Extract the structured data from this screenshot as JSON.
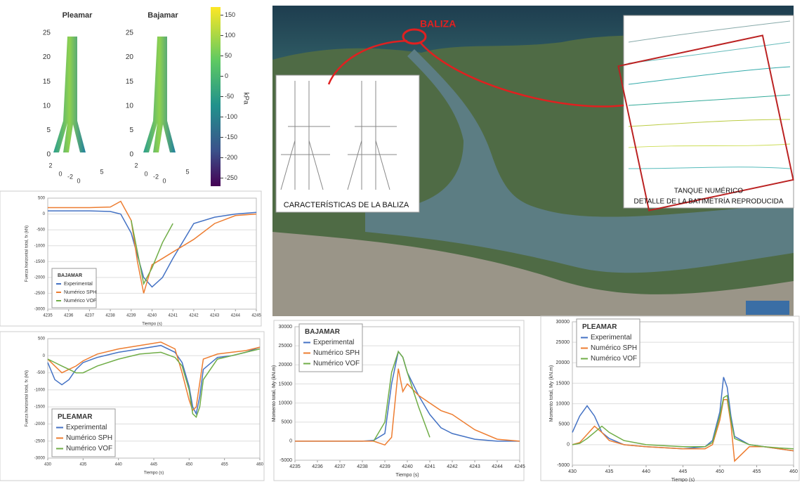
{
  "render3d": {
    "titles": [
      "Pleamar",
      "Bajamar"
    ],
    "zticks": [
      0,
      5,
      10,
      15,
      20,
      25
    ],
    "base_ticks": [
      "2",
      "0",
      "-2",
      "0",
      "5"
    ],
    "colorbar": {
      "label": "kPa",
      "clim": [
        -270,
        170
      ],
      "ticks": [
        150,
        100,
        50,
        0,
        -50,
        -100,
        -150,
        -200,
        -250
      ]
    }
  },
  "map": {
    "beacon": "BALIZA",
    "beacon_caption": "CARACTERÍSTICAS DE LA BALIZA",
    "tank_title": "TANQUE NUMÉRICO",
    "tank_caption": "DETALLE DE LA BATIMETRÍA REPRODUCIDA"
  },
  "chart_data": [
    {
      "type": "line",
      "ylabel": "Fuerza horizontal total, fx (kN)",
      "xlabel": "Tiempo (s)",
      "legend_title": "BAJAMAR",
      "legend": "lower left",
      "grid": true,
      "x": [
        4235,
        4236,
        4237,
        4238,
        4238.5,
        4239,
        4239.3,
        4239.6,
        4240,
        4240.5,
        4241,
        4242,
        4243,
        4244,
        4245
      ],
      "xlim": [
        4235,
        4245
      ],
      "xticks": [
        4235,
        4236,
        4237,
        4238,
        4239,
        4240,
        4241,
        4242,
        4243,
        4244,
        4245
      ],
      "ylim": [
        -3000,
        500
      ],
      "yticks": [
        500,
        0,
        -500,
        -1000,
        -1500,
        -2000,
        -2500,
        -3000
      ],
      "series": [
        {
          "name": "Experimental",
          "color": "#4472c4",
          "values": [
            100,
            100,
            100,
            80,
            0,
            -600,
            -1300,
            -2000,
            -2300,
            -2000,
            -1400,
            -300,
            -100,
            0,
            50
          ]
        },
        {
          "name": "Numérico SPH",
          "color": "#ed7d31",
          "values": [
            200,
            200,
            200,
            220,
            400,
            -200,
            -1500,
            -2500,
            -1600,
            -1400,
            -1200,
            -800,
            -300,
            -50,
            0
          ]
        },
        {
          "name": "Numérico VOF",
          "color": "#70ad47",
          "values": [
            null,
            null,
            null,
            null,
            null,
            -200,
            -1200,
            -2200,
            -1700,
            -900,
            -300,
            null,
            null,
            null,
            null
          ]
        }
      ]
    },
    {
      "type": "line",
      "ylabel": "Fuerza horizontal total, fx (kN)",
      "xlabel": "Tiempo (s)",
      "legend_title": "PLEAMAR",
      "legend": "lower left",
      "grid": true,
      "x": [
        430,
        431,
        432,
        433,
        434,
        435,
        437,
        440,
        443,
        446,
        448,
        449,
        450,
        450.5,
        451,
        451.5,
        452,
        454,
        456,
        458,
        460
      ],
      "xlim": [
        430,
        460
      ],
      "xticks": [
        430,
        435,
        440,
        445,
        450,
        455,
        460
      ],
      "ylim": [
        -3000,
        500
      ],
      "yticks": [
        500,
        0,
        -500,
        -1000,
        -1500,
        -2000,
        -2500,
        -3000
      ],
      "series": [
        {
          "name": "Experimental",
          "color": "#4472c4",
          "values": [
            -200,
            -700,
            -850,
            -700,
            -400,
            -200,
            -50,
            100,
            200,
            300,
            100,
            -200,
            -900,
            -1500,
            -1700,
            -1200,
            -400,
            -50,
            0,
            100,
            250
          ]
        },
        {
          "name": "Numérico SPH",
          "color": "#ed7d31",
          "values": [
            -100,
            -300,
            -500,
            -400,
            -300,
            -150,
            50,
            200,
            300,
            400,
            200,
            -500,
            -1300,
            -1600,
            -1500,
            -800,
            -100,
            50,
            100,
            150,
            250
          ]
        },
        {
          "name": "Numérico VOF",
          "color": "#70ad47",
          "values": [
            -100,
            -200,
            -300,
            -400,
            -500,
            -500,
            -300,
            -100,
            50,
            100,
            -50,
            -300,
            -1000,
            -1700,
            -1800,
            -1500,
            -700,
            -100,
            0,
            100,
            200
          ]
        }
      ]
    },
    {
      "type": "line",
      "ylabel": "Momento total, My (kN.m)",
      "xlabel": "Tiempo (s)",
      "legend_title": "BAJAMAR",
      "legend": "upper left",
      "grid": true,
      "x": [
        4235,
        4236,
        4237,
        4238,
        4238.5,
        4239,
        4239.3,
        4239.6,
        4239.8,
        4240,
        4240.5,
        4241,
        4241.5,
        4242,
        4243,
        4244,
        4245
      ],
      "xlim": [
        4235,
        4245
      ],
      "xticks": [
        4235,
        4236,
        4237,
        4238,
        4239,
        4240,
        4241,
        4242,
        4243,
        4244,
        4245
      ],
      "ylim": [
        -5000,
        30000
      ],
      "yticks": [
        30000,
        25000,
        20000,
        15000,
        10000,
        5000,
        0,
        -5000
      ],
      "series": [
        {
          "name": "Experimental",
          "color": "#4472c4",
          "values": [
            0,
            0,
            0,
            0,
            200,
            2000,
            15000,
            23500,
            22000,
            18000,
            12000,
            7000,
            3500,
            2000,
            500,
            0,
            0
          ]
        },
        {
          "name": "Numérico SPH",
          "color": "#ed7d31",
          "values": [
            0,
            0,
            0,
            0,
            0,
            -1000,
            1000,
            19000,
            13000,
            15000,
            12000,
            10000,
            8000,
            7000,
            3000,
            500,
            0
          ]
        },
        {
          "name": "Numérico VOF",
          "color": "#70ad47",
          "values": [
            null,
            null,
            null,
            null,
            0,
            5000,
            18000,
            23500,
            22000,
            18000,
            9000,
            1000,
            null,
            null,
            null,
            null,
            null
          ]
        }
      ]
    },
    {
      "type": "line",
      "ylabel": "Momento total, My (kN.m)",
      "xlabel": "Tiempo (s)",
      "legend_title": "PLEAMAR",
      "legend": "upper left",
      "grid": true,
      "x": [
        430,
        431,
        432,
        433,
        434,
        435,
        437,
        440,
        445,
        448,
        449,
        450,
        450.5,
        451,
        451.5,
        452,
        454,
        456,
        458,
        460
      ],
      "xlim": [
        430,
        460
      ],
      "xticks": [
        430,
        435,
        440,
        445,
        450,
        455,
        460
      ],
      "ylim": [
        -5000,
        30000
      ],
      "yticks": [
        30000,
        25000,
        20000,
        15000,
        10000,
        5000,
        0,
        -5000
      ],
      "series": [
        {
          "name": "Experimental",
          "color": "#4472c4",
          "values": [
            3000,
            7000,
            9500,
            7000,
            3000,
            1500,
            0,
            -500,
            -1000,
            -500,
            1000,
            8000,
            16500,
            14000,
            7000,
            2000,
            0,
            -500,
            -1000,
            -1500
          ]
        },
        {
          "name": "Numérico SPH",
          "color": "#ed7d31",
          "values": [
            0,
            500,
            2500,
            4500,
            3000,
            1000,
            0,
            -500,
            -1000,
            -1000,
            0,
            6000,
            11000,
            11000,
            5000,
            -4000,
            -500,
            -500,
            -1000,
            -1500
          ]
        },
        {
          "name": "Numérico VOF",
          "color": "#70ad47",
          "values": [
            0,
            300,
            1500,
            3000,
            4500,
            3000,
            1000,
            0,
            -500,
            -500,
            500,
            7000,
            11500,
            12000,
            6000,
            1500,
            0,
            -500,
            -800,
            -1000
          ]
        }
      ]
    }
  ]
}
